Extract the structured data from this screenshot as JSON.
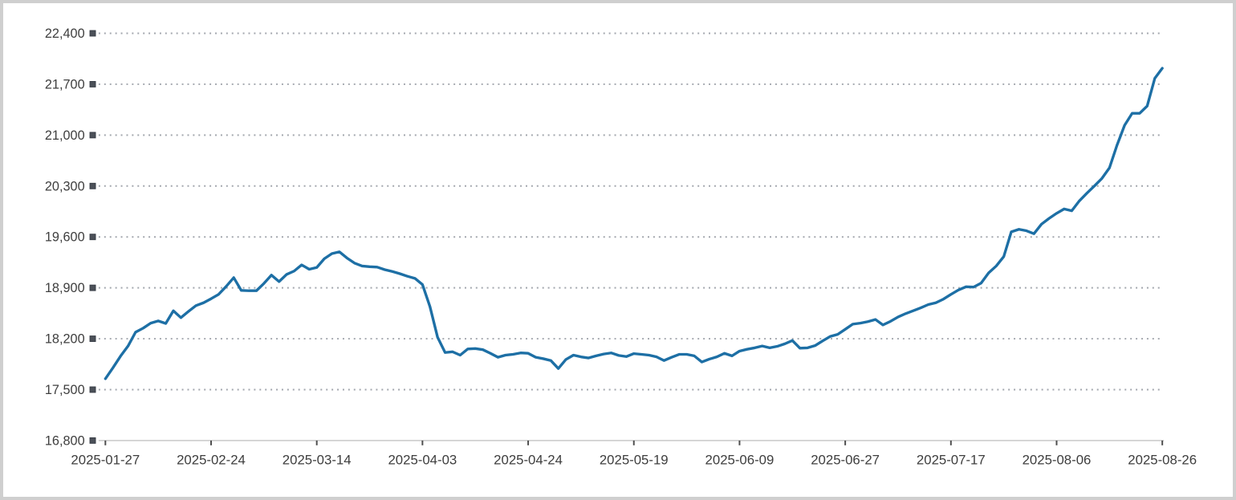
{
  "chart_data": {
    "type": "line",
    "title": "",
    "xlabel": "",
    "ylabel": "",
    "legend": "none",
    "grid": "horizontal-dotted",
    "ylim": [
      16800,
      22400
    ],
    "y_tick_values": [
      16800,
      17500,
      18200,
      18900,
      19600,
      20300,
      21000,
      21700,
      22400
    ],
    "y_tick_labels": [
      "16,800",
      "17,500",
      "18,200",
      "18,900",
      "19,600",
      "20,300",
      "21,000",
      "21,700",
      "22,400"
    ],
    "x_tick_labels": [
      "2025-01-27",
      "2025-02-24",
      "2025-03-14",
      "2025-04-03",
      "2025-04-24",
      "2025-05-19",
      "2025-06-09",
      "2025-06-27",
      "2025-07-17",
      "2025-08-06",
      "2025-08-26"
    ],
    "x_tick_indices": [
      0,
      14,
      28,
      42,
      56,
      70,
      84,
      98,
      112,
      126,
      140
    ],
    "series": [
      {
        "name": "",
        "values": [
          17650,
          17800,
          17960,
          18100,
          18290,
          18345,
          18415,
          18445,
          18410,
          18585,
          18490,
          18575,
          18655,
          18695,
          18750,
          18810,
          18920,
          19040,
          18865,
          18860,
          18860,
          18960,
          19075,
          18985,
          19085,
          19130,
          19215,
          19155,
          19180,
          19300,
          19370,
          19395,
          19310,
          19240,
          19200,
          19190,
          19185,
          19150,
          19125,
          19095,
          19060,
          19030,
          18945,
          18640,
          18220,
          18010,
          18020,
          17975,
          18060,
          18065,
          18050,
          18000,
          17945,
          17975,
          17985,
          18005,
          18000,
          17945,
          17925,
          17900,
          17790,
          17915,
          17975,
          17950,
          17935,
          17965,
          17990,
          18005,
          17970,
          17955,
          17995,
          17985,
          17975,
          17950,
          17900,
          17945,
          17985,
          17985,
          17965,
          17880,
          17920,
          17950,
          18000,
          17965,
          18030,
          18055,
          18075,
          18100,
          18075,
          18095,
          18130,
          18175,
          18070,
          18075,
          18105,
          18170,
          18230,
          18260,
          18330,
          18400,
          18415,
          18435,
          18465,
          18390,
          18440,
          18500,
          18545,
          18585,
          18625,
          18670,
          18695,
          18745,
          18810,
          18870,
          18915,
          18910,
          18965,
          19105,
          19200,
          19330,
          19670,
          19705,
          19685,
          19645,
          19775,
          19855,
          19925,
          19985,
          19960,
          20095,
          20200,
          20300,
          20405,
          20550,
          20860,
          21135,
          21300,
          21300,
          21400,
          21780,
          21920
        ]
      }
    ]
  },
  "colors": {
    "line": "#1d6fa5",
    "grid_dot": "#a2a6ad",
    "axis_line": "#c3c3c3",
    "x_tick_mark": "#4d4d4d",
    "y_tick_square_fill": "#4b5058",
    "y_tick_square_stroke": "#383d46",
    "label_text": "#3e3e3e",
    "frame_border": "#cfcfcf",
    "background": "#ffffff"
  }
}
